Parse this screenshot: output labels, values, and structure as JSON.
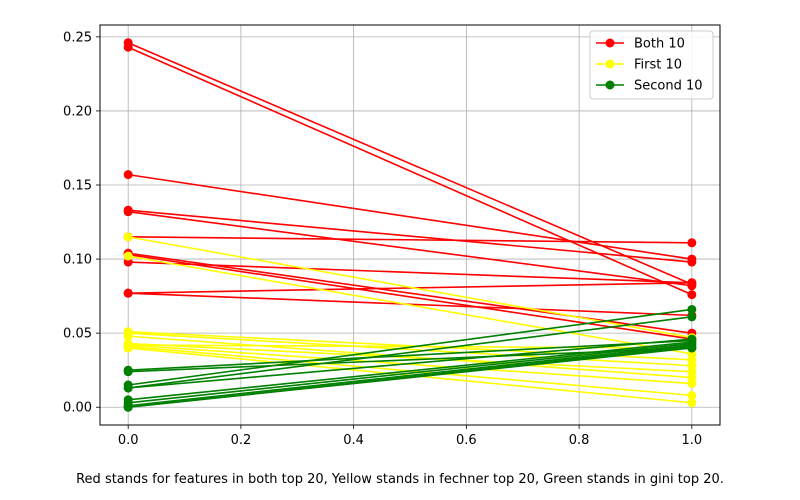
{
  "caption": "Red stands for features in both top 20, Yellow stands in fechner top 20, Green stands in gini top 20.",
  "chart_data": {
    "type": "line",
    "title": "",
    "xlabel": "",
    "ylabel": "",
    "xlim": [
      -0.05,
      1.05
    ],
    "ylim": [
      -0.012,
      0.258
    ],
    "xticks": [
      0.0,
      0.2,
      0.4,
      0.6,
      0.8,
      1.0
    ],
    "xtick_labels": [
      "0.0",
      "0.2",
      "0.4",
      "0.6",
      "0.8",
      "1.0"
    ],
    "yticks": [
      0.0,
      0.05,
      0.1,
      0.15,
      0.2,
      0.25
    ],
    "ytick_labels": [
      "0.00",
      "0.05",
      "0.10",
      "0.15",
      "0.20",
      "0.25"
    ],
    "grid": true,
    "legend": "top-right",
    "x": [
      0,
      1
    ],
    "groups": [
      {
        "name": "Both 10",
        "color": "#ff0000",
        "series": [
          [
            0.246,
            0.083
          ],
          [
            0.243,
            0.076
          ],
          [
            0.157,
            0.1
          ],
          [
            0.133,
            0.098
          ],
          [
            0.132,
            0.082
          ],
          [
            0.115,
            0.111
          ],
          [
            0.104,
            0.05
          ],
          [
            0.103,
            0.046
          ],
          [
            0.098,
            0.084
          ],
          [
            0.077,
            0.084
          ],
          [
            0.077,
            0.062
          ]
        ]
      },
      {
        "name": "First 10",
        "color": "#ffff00",
        "series": [
          [
            0.115,
            0.047
          ],
          [
            0.102,
            0.036
          ],
          [
            0.051,
            0.032
          ],
          [
            0.05,
            0.028
          ],
          [
            0.048,
            0.02
          ],
          [
            0.043,
            0.024
          ],
          [
            0.042,
            0.016
          ],
          [
            0.041,
            0.008
          ],
          [
            0.04,
            0.003
          ],
          [
            0.042,
            0.04
          ]
        ]
      },
      {
        "name": "Second 10",
        "color": "#008000",
        "series": [
          [
            0.025,
            0.045
          ],
          [
            0.024,
            0.04
          ],
          [
            0.015,
            0.066
          ],
          [
            0.013,
            0.061
          ],
          [
            0.005,
            0.044
          ],
          [
            0.003,
            0.043
          ],
          [
            0.001,
            0.042
          ],
          [
            0.0,
            0.041
          ],
          [
            0.0,
            0.04
          ],
          [
            0.013,
            0.046
          ]
        ]
      }
    ]
  }
}
